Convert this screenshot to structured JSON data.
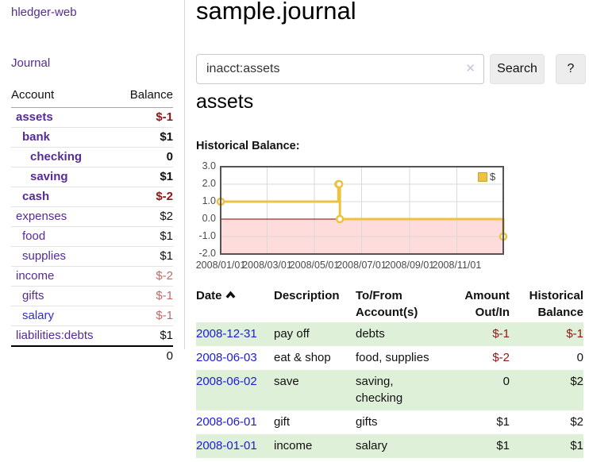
{
  "sidebar": {
    "app_title": "hledger-web",
    "journal_label": "Journal",
    "table_headers": {
      "account": "Account",
      "balance": "Balance"
    },
    "accounts": [
      {
        "name": "assets",
        "balance": "$-1"
      },
      {
        "name": "bank",
        "balance": "$1"
      },
      {
        "name": "checking",
        "balance": "0"
      },
      {
        "name": "saving",
        "balance": "$1"
      },
      {
        "name": "cash",
        "balance": "$-2"
      },
      {
        "name": "expenses",
        "balance": "$2"
      },
      {
        "name": "food",
        "balance": "$1"
      },
      {
        "name": "supplies",
        "balance": "$1"
      },
      {
        "name": "income",
        "balance": "$-2"
      },
      {
        "name": "gifts",
        "balance": "$-1"
      },
      {
        "name": "salary",
        "balance": "$-1"
      },
      {
        "name": "liabilities:debts",
        "balance": "$1"
      }
    ],
    "total": "0"
  },
  "main": {
    "title": "sample.journal",
    "search": {
      "value": "inacct:assets",
      "clear_icon": "✕",
      "button_label": "Search",
      "help_label": "?"
    },
    "account_heading": "assets",
    "chart_label": "Historical Balance:"
  },
  "register": {
    "headers": {
      "date": "Date",
      "sort": "ascending",
      "description": "Description",
      "accounts": "To/From Account(s)",
      "amount": "Amount Out/In",
      "balance": "Historical Balance"
    },
    "rows": [
      {
        "date": "2008-12-31",
        "description": "pay off",
        "accounts": "debts",
        "amount": "$-1",
        "balance": "$-1"
      },
      {
        "date": "2008-06-03",
        "description": "eat & shop",
        "accounts": "food, supplies",
        "amount": "$-2",
        "balance": "0"
      },
      {
        "date": "2008-06-02",
        "description": "save",
        "accounts": "saving, checking",
        "amount": "0",
        "balance": "$2"
      },
      {
        "date": "2008-06-01",
        "description": "gift",
        "accounts": "gifts",
        "amount": "$1",
        "balance": "$2"
      },
      {
        "date": "2008-01-01",
        "description": "income",
        "accounts": "salary",
        "amount": "$1",
        "balance": "$1"
      }
    ]
  },
  "chart_data": {
    "type": "line",
    "title": "Historical Balance:",
    "step": true,
    "series": [
      {
        "name": "$",
        "color": "#edc240",
        "points": [
          [
            "2008/01/01",
            1
          ],
          [
            "2008/06/01",
            2
          ],
          [
            "2008/06/02",
            2
          ],
          [
            "2008/06/03",
            0
          ],
          [
            "2008/12/31",
            -1
          ]
        ]
      }
    ],
    "x_range": [
      "2008/01/01",
      "2008/12/31"
    ],
    "ylim": [
      -2,
      3
    ],
    "y_ticks": [
      3,
      2,
      1,
      0,
      -1,
      -2
    ],
    "y_tick_labels": [
      "3.0",
      "2.0",
      "1.0",
      "0.0",
      "-1.0",
      "-2.0"
    ],
    "x_tick_labels": [
      "2008/01/01",
      "2008/03/01",
      "2008/05/01",
      "2008/07/01",
      "2008/09/01",
      "2008/11/01"
    ],
    "grid": true,
    "negative_fill": "#fedcdc",
    "zero_line_color": "#8b0000",
    "legend": {
      "label": "$",
      "position": "top-right"
    }
  },
  "colors": {
    "accent_purple": "#552b98",
    "link_blue": "#1c1cd8",
    "negative_dark": "#8f1515",
    "negative_soft": "#c06969",
    "row_green": "#dff0d8",
    "chart_line": "#edc240",
    "chart_negative_fill": "#fedcdc",
    "zero_line": "#8b0000"
  }
}
